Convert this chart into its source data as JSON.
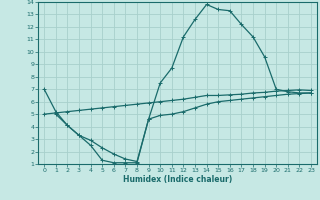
{
  "xlabel": "Humidex (Indice chaleur)",
  "bg_color": "#c6e8e4",
  "grid_color": "#a8d0cc",
  "line_color": "#1a6b6b",
  "xlim": [
    -0.5,
    23.5
  ],
  "ylim": [
    1,
    14
  ],
  "xticks": [
    0,
    1,
    2,
    3,
    4,
    5,
    6,
    7,
    8,
    9,
    10,
    11,
    12,
    13,
    14,
    15,
    16,
    17,
    18,
    19,
    20,
    21,
    22,
    23
  ],
  "yticks": [
    1,
    2,
    3,
    4,
    5,
    6,
    7,
    8,
    9,
    10,
    11,
    12,
    13,
    14
  ],
  "line1_x": [
    0,
    1,
    2,
    3,
    4,
    5,
    6,
    7,
    8,
    9,
    10,
    11,
    12,
    13,
    14,
    15,
    16,
    17,
    18,
    19,
    20,
    21,
    22,
    23
  ],
  "line1_y": [
    7.0,
    5.2,
    4.1,
    3.3,
    2.5,
    1.3,
    1.1,
    1.1,
    1.1,
    4.6,
    7.5,
    8.7,
    11.2,
    12.6,
    13.8,
    13.4,
    13.3,
    12.2,
    11.2,
    9.6,
    7.0,
    6.8,
    6.7,
    6.7
  ],
  "line2_x": [
    0,
    1,
    2,
    3,
    4,
    5,
    6,
    7,
    8,
    9,
    10,
    11,
    12,
    13,
    14,
    15,
    16,
    17,
    18,
    19,
    20,
    21,
    22,
    23
  ],
  "line2_y": [
    5.0,
    5.1,
    5.2,
    5.3,
    5.4,
    5.5,
    5.6,
    5.7,
    5.8,
    5.9,
    6.0,
    6.1,
    6.2,
    6.35,
    6.5,
    6.5,
    6.55,
    6.6,
    6.7,
    6.75,
    6.85,
    6.9,
    6.95,
    6.9
  ],
  "line3_x": [
    1,
    2,
    3,
    4,
    5,
    6,
    7,
    8,
    9,
    10,
    11,
    12,
    13,
    14,
    15,
    16,
    17,
    18,
    19,
    20,
    21,
    22,
    23
  ],
  "line3_y": [
    5.0,
    4.1,
    3.3,
    2.9,
    2.3,
    1.8,
    1.4,
    1.2,
    4.6,
    4.9,
    5.0,
    5.2,
    5.5,
    5.8,
    6.0,
    6.1,
    6.2,
    6.3,
    6.4,
    6.5,
    6.6,
    6.65,
    6.7
  ]
}
